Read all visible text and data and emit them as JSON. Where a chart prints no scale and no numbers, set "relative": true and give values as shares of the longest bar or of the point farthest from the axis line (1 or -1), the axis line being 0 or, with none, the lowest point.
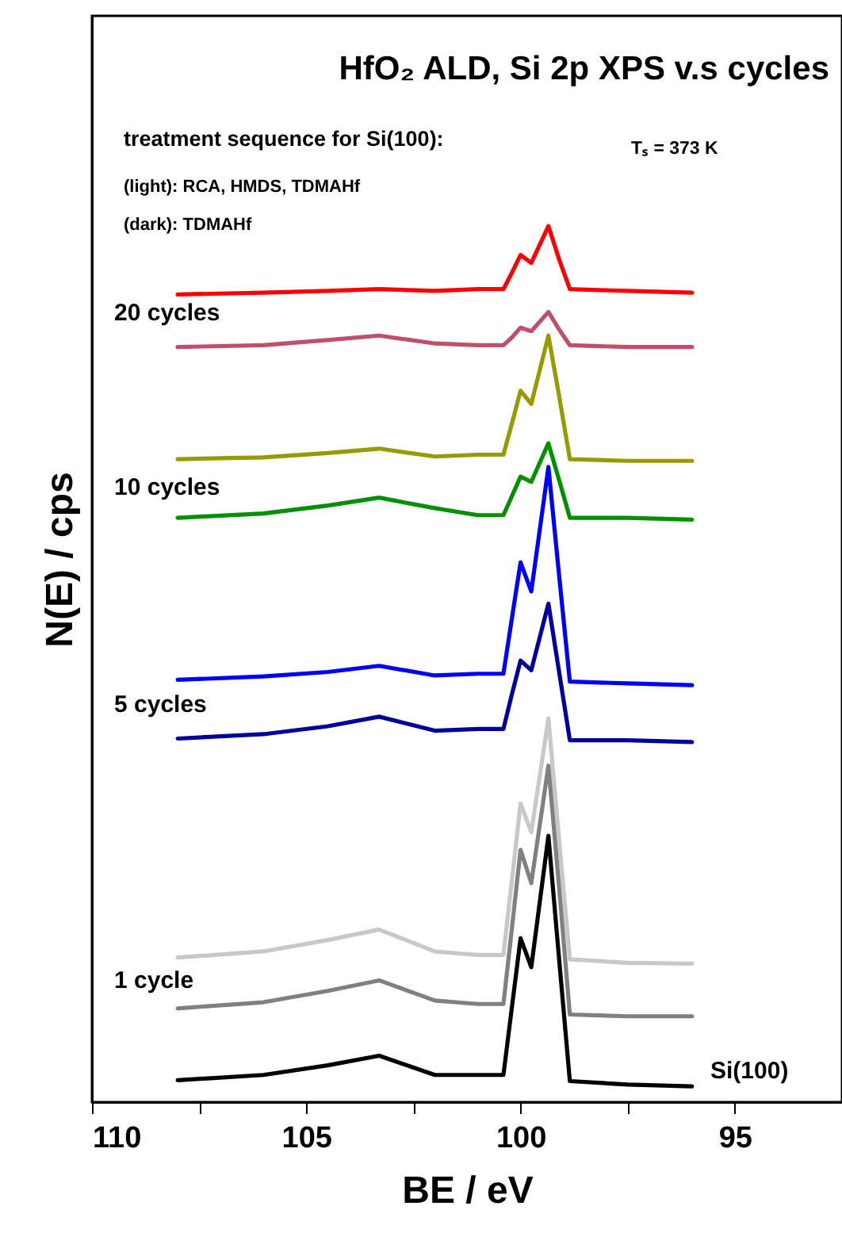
{
  "chart_data": {
    "type": "line",
    "title": "HfO₂ ALD, Si 2p XPS v.s cycles",
    "xlabel": "BE / eV",
    "ylabel": "N(E) / cps",
    "relative": true,
    "x": [
      108,
      106,
      104.5,
      103.3,
      102,
      101,
      100.4,
      100.2,
      100.0,
      99.75,
      99.35,
      99.1,
      98.85,
      97.5,
      96
    ],
    "xlim": [
      110,
      92.5
    ],
    "xticks": [
      110,
      {
        "value": 107.5,
        "label": null
      },
      105,
      {
        "value": 102.5,
        "label": null
      },
      100,
      {
        "value": 97.5,
        "label": null
      },
      95,
      {
        "value": 92.5,
        "label": null
      }
    ],
    "tick_labels": "x",
    "grid": false,
    "marker": "none",
    "line_style": "solid",
    "series": [
      {
        "color": "#ff0000",
        "values": [
          0.922,
          0.924,
          0.926,
          0.928,
          0.926,
          0.928,
          0.928,
          0.947,
          0.967,
          0.958,
          1.0,
          0.962,
          0.928,
          0.926,
          0.924
        ]
      },
      {
        "color": "#c0506a",
        "values": [
          0.862,
          0.864,
          0.87,
          0.875,
          0.866,
          0.864,
          0.864,
          0.873,
          0.884,
          0.88,
          0.902,
          0.882,
          0.864,
          0.862,
          0.862
        ]
      },
      {
        "color": "#999900",
        "values": [
          0.734,
          0.736,
          0.741,
          0.746,
          0.737,
          0.739,
          0.739,
          0.775,
          0.812,
          0.797,
          0.875,
          0.806,
          0.734,
          0.732,
          0.732
        ]
      },
      {
        "color": "#009000",
        "values": [
          0.667,
          0.672,
          0.681,
          0.69,
          0.678,
          0.67,
          0.67,
          0.692,
          0.714,
          0.708,
          0.752,
          0.71,
          0.667,
          0.667,
          0.665
        ]
      },
      {
        "color": "#0000ff",
        "values": [
          0.482,
          0.486,
          0.491,
          0.498,
          0.487,
          0.489,
          0.489,
          0.553,
          0.616,
          0.583,
          0.725,
          0.601,
          0.48,
          0.478,
          0.476
        ]
      },
      {
        "color": "#00009c",
        "values": [
          0.415,
          0.42,
          0.429,
          0.44,
          0.424,
          0.426,
          0.426,
          0.466,
          0.504,
          0.493,
          0.569,
          0.491,
          0.413,
          0.413,
          0.411
        ]
      },
      {
        "color": "#c8c8c8",
        "values": [
          0.165,
          0.172,
          0.185,
          0.197,
          0.172,
          0.168,
          0.168,
          0.254,
          0.341,
          0.308,
          0.438,
          0.299,
          0.163,
          0.159,
          0.158
        ]
      },
      {
        "color": "#808080",
        "values": [
          0.107,
          0.114,
          0.127,
          0.139,
          0.116,
          0.112,
          0.112,
          0.199,
          0.288,
          0.25,
          0.384,
          0.245,
          0.1,
          0.098,
          0.098
        ]
      },
      {
        "color": "#000000",
        "values": [
          0.025,
          0.031,
          0.042,
          0.053,
          0.031,
          0.031,
          0.031,
          0.109,
          0.187,
          0.154,
          0.304,
          0.163,
          0.024,
          0.02,
          0.018
        ]
      }
    ],
    "annotations": [
      "treatment sequence for Si(100):",
      "(light): RCA, HMDS, TDMAHf",
      "(dark): TDMAHf",
      "Tₛ = 373 K",
      "20 cycles",
      "10 cycles",
      "5 cycles",
      "1 cycle",
      "Si(100)"
    ]
  }
}
